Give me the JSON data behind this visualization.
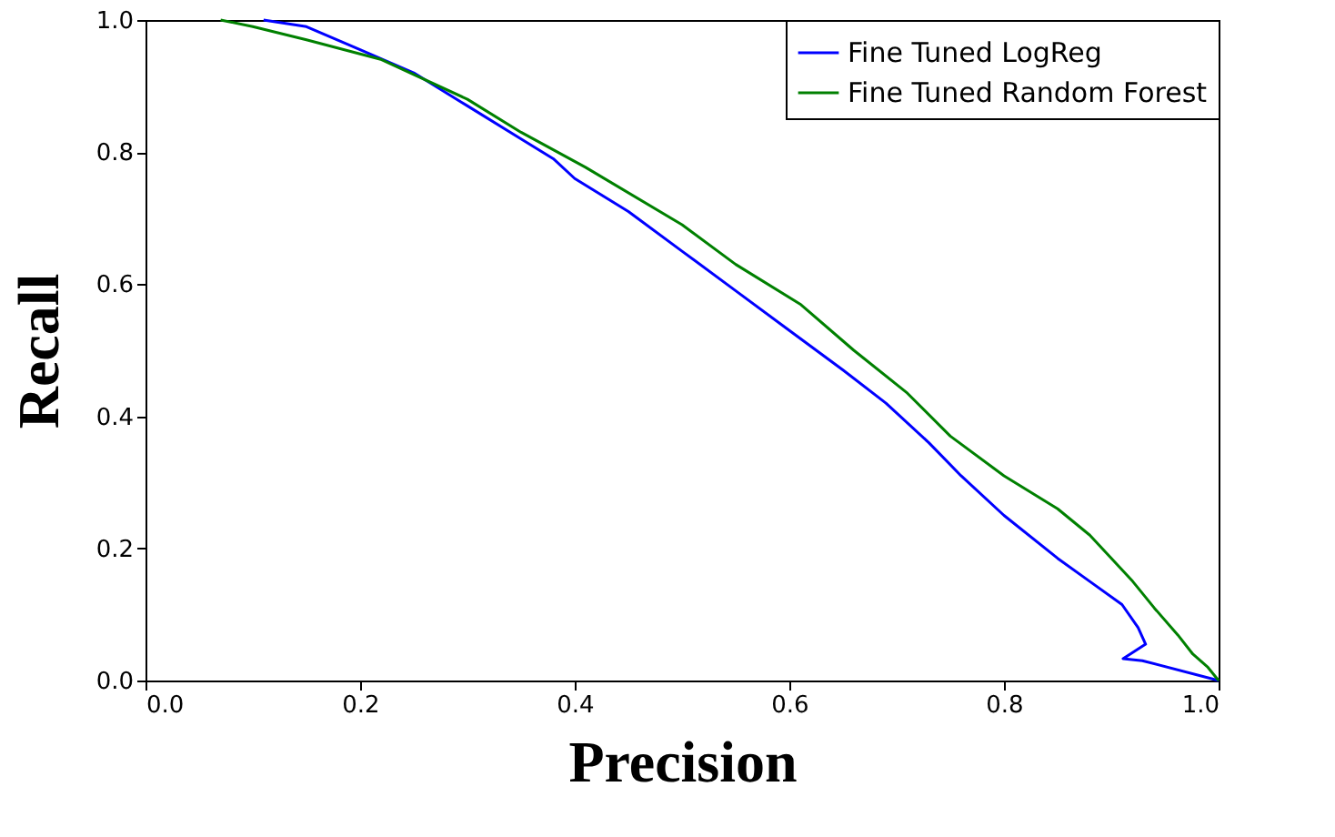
{
  "chart_data": {
    "type": "line",
    "xlabel": "Precision",
    "ylabel": "Recall",
    "xlim": [
      0.0,
      1.0
    ],
    "ylim": [
      0.0,
      1.0
    ],
    "xticks": [
      {
        "value": 0,
        "label": "0.0"
      },
      0.2,
      0.4,
      0.6,
      0.8,
      {
        "value": 1,
        "label": "1.0"
      }
    ],
    "yticks": [
      {
        "value": 0,
        "label": "0.0"
      },
      0.2,
      0.4,
      0.6,
      0.8,
      {
        "value": 1,
        "label": "1.0"
      }
    ],
    "grid": false,
    "legend": "top right",
    "marker": "none",
    "line_style": "solid",
    "series": [
      {
        "name": "Fine Tuned LogReg",
        "color": "#0000ff",
        "x": [
          0.11,
          0.15,
          0.2,
          0.25,
          0.3,
          0.35,
          0.38,
          0.4,
          0.45,
          0.5,
          0.55,
          0.6,
          0.65,
          0.69,
          0.73,
          0.76,
          0.8,
          0.85,
          0.88,
          0.91,
          0.925,
          0.932,
          0.911,
          0.929,
          1.0
        ],
        "values": [
          1.0,
          0.99,
          0.955,
          0.92,
          0.87,
          0.82,
          0.79,
          0.76,
          0.71,
          0.65,
          0.59,
          0.53,
          0.47,
          0.42,
          0.36,
          0.31,
          0.25,
          0.185,
          0.15,
          0.115,
          0.08,
          0.055,
          0.033,
          0.03,
          0.0
        ]
      },
      {
        "name": "Fine Tuned Random Forest",
        "color": "#008000",
        "x": [
          0.07,
          0.1,
          0.15,
          0.22,
          0.3,
          0.35,
          0.41,
          0.5,
          0.55,
          0.61,
          0.66,
          0.71,
          0.75,
          0.8,
          0.85,
          0.88,
          0.92,
          0.94,
          0.962,
          0.976,
          0.99,
          1.0
        ],
        "values": [
          1.0,
          0.99,
          0.97,
          0.94,
          0.88,
          0.83,
          0.777,
          0.69,
          0.63,
          0.57,
          0.5,
          0.435,
          0.37,
          0.31,
          0.26,
          0.22,
          0.15,
          0.11,
          0.069,
          0.04,
          0.02,
          0.0
        ]
      }
    ]
  }
}
